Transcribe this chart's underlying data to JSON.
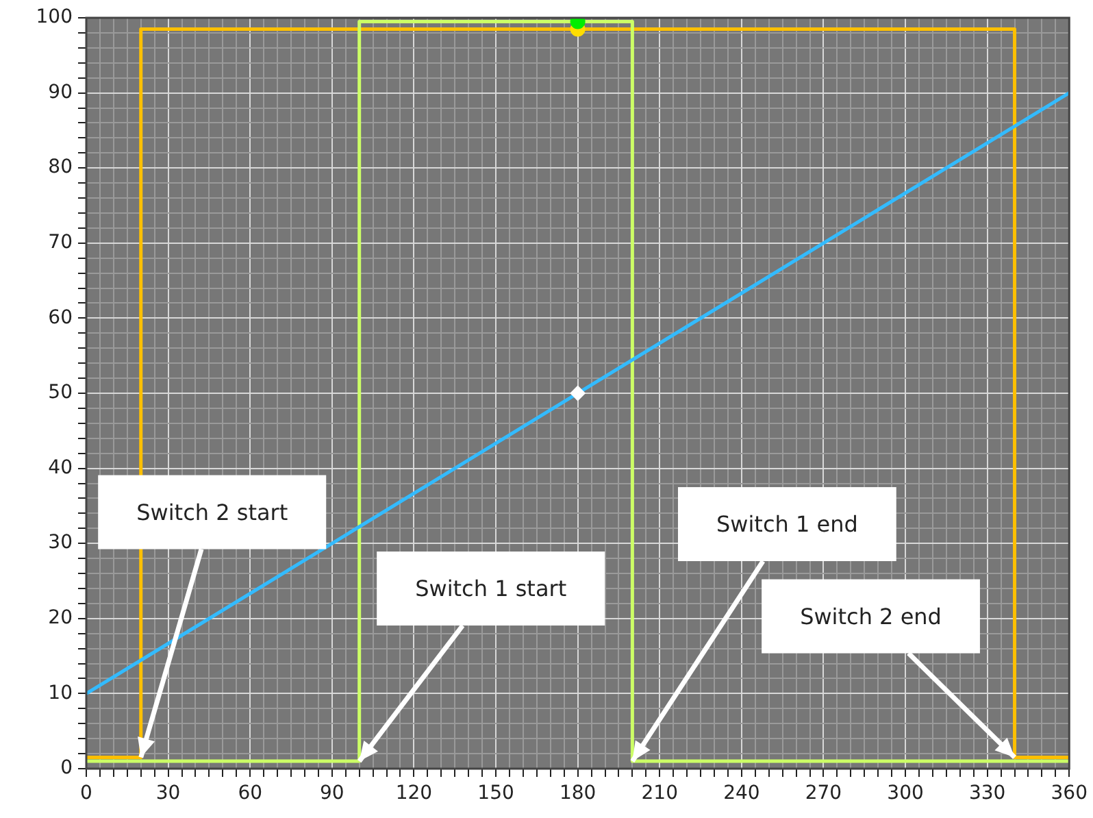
{
  "chart_data": {
    "type": "line",
    "xlim": [
      0,
      360
    ],
    "ylim": [
      0,
      100
    ],
    "xticks": [
      0,
      {
        "value": 5,
        "label": null
      },
      {
        "value": 10,
        "label": null
      },
      {
        "value": 15,
        "label": null
      },
      {
        "value": 20,
        "label": null
      },
      {
        "value": 25,
        "label": null
      },
      30,
      {
        "value": 35,
        "label": null
      },
      {
        "value": 40,
        "label": null
      },
      {
        "value": 45,
        "label": null
      },
      {
        "value": 50,
        "label": null
      },
      {
        "value": 55,
        "label": null
      },
      60,
      {
        "value": 65,
        "label": null
      },
      {
        "value": 70,
        "label": null
      },
      {
        "value": 75,
        "label": null
      },
      {
        "value": 80,
        "label": null
      },
      {
        "value": 85,
        "label": null
      },
      90,
      {
        "value": 95,
        "label": null
      },
      {
        "value": 100,
        "label": null
      },
      {
        "value": 105,
        "label": null
      },
      {
        "value": 110,
        "label": null
      },
      {
        "value": 115,
        "label": null
      },
      120,
      {
        "value": 125,
        "label": null
      },
      {
        "value": 130,
        "label": null
      },
      {
        "value": 135,
        "label": null
      },
      {
        "value": 140,
        "label": null
      },
      {
        "value": 145,
        "label": null
      },
      150,
      {
        "value": 155,
        "label": null
      },
      {
        "value": 160,
        "label": null
      },
      {
        "value": 165,
        "label": null
      },
      {
        "value": 170,
        "label": null
      },
      {
        "value": 175,
        "label": null
      },
      180,
      {
        "value": 185,
        "label": null
      },
      {
        "value": 190,
        "label": null
      },
      {
        "value": 195,
        "label": null
      },
      {
        "value": 200,
        "label": null
      },
      {
        "value": 205,
        "label": null
      },
      210,
      {
        "value": 215,
        "label": null
      },
      {
        "value": 220,
        "label": null
      },
      {
        "value": 225,
        "label": null
      },
      {
        "value": 230,
        "label": null
      },
      {
        "value": 235,
        "label": null
      },
      240,
      {
        "value": 245,
        "label": null
      },
      {
        "value": 250,
        "label": null
      },
      {
        "value": 255,
        "label": null
      },
      {
        "value": 260,
        "label": null
      },
      {
        "value": 265,
        "label": null
      },
      270,
      {
        "value": 275,
        "label": null
      },
      {
        "value": 280,
        "label": null
      },
      {
        "value": 285,
        "label": null
      },
      {
        "value": 290,
        "label": null
      },
      {
        "value": 295,
        "label": null
      },
      300,
      {
        "value": 305,
        "label": null
      },
      {
        "value": 310,
        "label": null
      },
      {
        "value": 315,
        "label": null
      },
      {
        "value": 320,
        "label": null
      },
      {
        "value": 325,
        "label": null
      },
      330,
      {
        "value": 335,
        "label": null
      },
      {
        "value": 340,
        "label": null
      },
      {
        "value": 345,
        "label": null
      },
      {
        "value": 350,
        "label": null
      },
      {
        "value": 355,
        "label": null
      },
      360
    ],
    "yticks": [
      0,
      {
        "value": 2,
        "label": null
      },
      {
        "value": 4,
        "label": null
      },
      {
        "value": 6,
        "label": null
      },
      {
        "value": 8,
        "label": null
      },
      10,
      {
        "value": 12,
        "label": null
      },
      {
        "value": 14,
        "label": null
      },
      {
        "value": 16,
        "label": null
      },
      {
        "value": 18,
        "label": null
      },
      20,
      {
        "value": 22,
        "label": null
      },
      {
        "value": 24,
        "label": null
      },
      {
        "value": 26,
        "label": null
      },
      {
        "value": 28,
        "label": null
      },
      30,
      {
        "value": 32,
        "label": null
      },
      {
        "value": 34,
        "label": null
      },
      {
        "value": 36,
        "label": null
      },
      {
        "value": 38,
        "label": null
      },
      40,
      {
        "value": 42,
        "label": null
      },
      {
        "value": 44,
        "label": null
      },
      {
        "value": 46,
        "label": null
      },
      {
        "value": 48,
        "label": null
      },
      50,
      {
        "value": 52,
        "label": null
      },
      {
        "value": 54,
        "label": null
      },
      {
        "value": 56,
        "label": null
      },
      {
        "value": 58,
        "label": null
      },
      60,
      {
        "value": 62,
        "label": null
      },
      {
        "value": 64,
        "label": null
      },
      {
        "value": 66,
        "label": null
      },
      {
        "value": 68,
        "label": null
      },
      70,
      {
        "value": 72,
        "label": null
      },
      {
        "value": 74,
        "label": null
      },
      {
        "value": 76,
        "label": null
      },
      {
        "value": 78,
        "label": null
      },
      80,
      {
        "value": 82,
        "label": null
      },
      {
        "value": 84,
        "label": null
      },
      {
        "value": 86,
        "label": null
      },
      {
        "value": 88,
        "label": null
      },
      90,
      {
        "value": 92,
        "label": null
      },
      {
        "value": 94,
        "label": null
      },
      {
        "value": 96,
        "label": null
      },
      {
        "value": 98,
        "label": null
      },
      100
    ],
    "grid": true,
    "legend": false,
    "marker": "none",
    "line_style": "solid",
    "series": [
      {
        "color": "#ffc000",
        "x": [
          0,
          20,
          20,
          340,
          340,
          360
        ],
        "values": [
          1.5,
          1.5,
          98.5,
          98.5,
          1.5,
          1.5
        ]
      },
      {
        "color": "#ccff66",
        "x": [
          0,
          100,
          100,
          200,
          200,
          360
        ],
        "values": [
          1,
          1,
          99.5,
          99.5,
          1,
          1
        ]
      },
      {
        "color": "#33bbff",
        "x": [
          0,
          360
        ],
        "values": [
          10,
          90
        ]
      },
      {
        "type": "scatter",
        "marker": "circle",
        "color": "#ffdd00",
        "x": [
          180
        ],
        "values": [
          98.5
        ]
      },
      {
        "type": "scatter",
        "marker": "circle",
        "color": "#00ee00",
        "x": [
          180
        ],
        "values": [
          99.5
        ]
      },
      {
        "type": "scatter",
        "marker": "diamond",
        "color": "#ffffff",
        "x": [
          180
        ],
        "values": [
          50
        ]
      }
    ],
    "annotations": [
      {
        "text": "Switch 2 start",
        "x": 20,
        "y": 1.5
      },
      {
        "text": "Switch 1 start",
        "x": 100,
        "y": 1
      },
      {
        "text": "Switch 1 end",
        "x": 200,
        "y": 1
      },
      {
        "text": "Switch 2 end",
        "x": 340,
        "y": 1.5
      }
    ]
  }
}
